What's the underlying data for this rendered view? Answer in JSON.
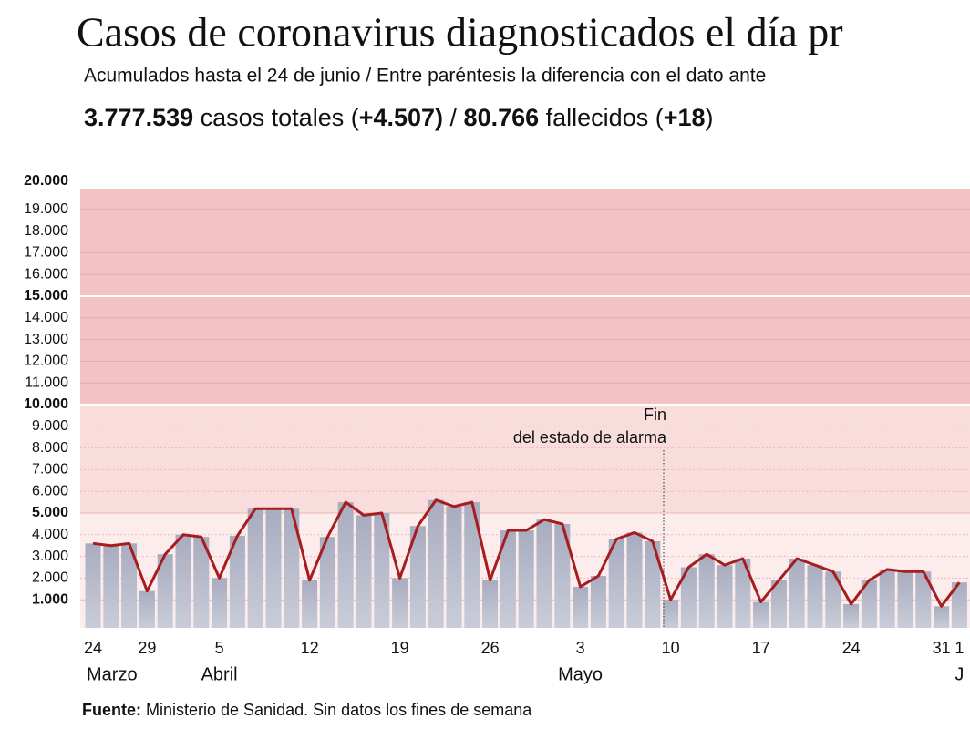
{
  "chart_data": {
    "type": "bar-line",
    "title": "Casos de coronavirus diagnosticados el día pr",
    "subtitle": "Acumulados hasta el 24 de junio / Entre paréntesis la diferencia con el dato ante",
    "stats": [
      {
        "text": "3.777.539",
        "bold": true
      },
      {
        "text": " casos totales (",
        "bold": false
      },
      {
        "text": "+4.507)",
        "bold": true
      },
      {
        "text": " / ",
        "bold": false
      },
      {
        "text": "80.766",
        "bold": true
      },
      {
        "text": " fallecidos (",
        "bold": false
      },
      {
        "text": "+18",
        "bold": true
      },
      {
        "text": ")",
        "bold": false
      }
    ],
    "categories": [
      "24",
      null,
      null,
      "29",
      null,
      null,
      null,
      "5",
      null,
      null,
      null,
      null,
      "12",
      null,
      null,
      null,
      null,
      "19",
      null,
      null,
      null,
      null,
      "26",
      null,
      null,
      null,
      null,
      "3",
      null,
      null,
      null,
      null,
      "10",
      null,
      null,
      null,
      null,
      "17",
      null,
      null,
      null,
      null,
      "24",
      null,
      null,
      null,
      null,
      "31",
      "1"
    ],
    "months": [
      "Marzo",
      null,
      null,
      null,
      null,
      null,
      null,
      "Abril",
      null,
      null,
      null,
      null,
      null,
      null,
      null,
      null,
      null,
      null,
      null,
      null,
      null,
      null,
      null,
      null,
      null,
      null,
      null,
      "Mayo",
      null,
      null,
      null,
      null,
      null,
      null,
      null,
      null,
      null,
      null,
      null,
      null,
      null,
      null,
      null,
      null,
      null,
      null,
      null,
      null,
      "J"
    ],
    "values": [
      3600,
      3500,
      3600,
      1400,
      3100,
      4000,
      3900,
      2000,
      3950,
      5200,
      5200,
      5200,
      1900,
      3900,
      5500,
      4900,
      5000,
      2000,
      4400,
      5600,
      5300,
      5500,
      1900,
      4200,
      4200,
      4700,
      4500,
      1600,
      2100,
      3800,
      4100,
      3700,
      1000,
      2500,
      3100,
      2600,
      2900,
      900,
      1900,
      2900,
      2600,
      2300,
      800,
      1900,
      2400,
      2300,
      2300,
      700,
      1800
    ],
    "bar_color": "#a8acbf",
    "line_color": "#a51d1f",
    "ylim": [
      0,
      20000
    ],
    "yticks": [
      {
        "value": 1000,
        "label": "1.000",
        "bold": true
      },
      {
        "value": 2000,
        "label": "2.000"
      },
      {
        "value": 3000,
        "label": "3.000"
      },
      {
        "value": 4000,
        "label": "4.000"
      },
      {
        "value": 5000,
        "label": "5.000",
        "bold": true
      },
      {
        "value": 6000,
        "label": "6.000"
      },
      {
        "value": 7000,
        "label": "7.000"
      },
      {
        "value": 8000,
        "label": "8.000"
      },
      {
        "value": 9000,
        "label": "9.000"
      },
      {
        "value": 10000,
        "label": "10.000",
        "bold": true
      },
      {
        "value": 11000,
        "label": "11.000"
      },
      {
        "value": 12000,
        "label": "12.000"
      },
      {
        "value": 13000,
        "label": "13.000"
      },
      {
        "value": 14000,
        "label": "14.000"
      },
      {
        "value": 15000,
        "label": "15.000",
        "bold": true
      },
      {
        "value": 16000,
        "label": "16.000"
      },
      {
        "value": 17000,
        "label": "17.000"
      },
      {
        "value": 18000,
        "label": "18.000"
      },
      {
        "value": 19000,
        "label": "19.000"
      },
      {
        "value": 20000,
        "label": "20.000",
        "bold": true
      }
    ],
    "zones": [
      {
        "from": 10000,
        "to": 20000,
        "color": "#f3c3c3"
      },
      {
        "from": 5000,
        "to": 10000,
        "color": "#f9dcdc"
      },
      {
        "from": 0,
        "to": 5000,
        "color": "#fcecec"
      }
    ],
    "annotation": [
      "Fin",
      "del estado de alarma"
    ],
    "source": [
      {
        "text": "Fuente:",
        "bold": true
      },
      {
        "text": " Ministerio de Sanidad. Sin datos los fines de semana",
        "bold": false
      }
    ]
  }
}
